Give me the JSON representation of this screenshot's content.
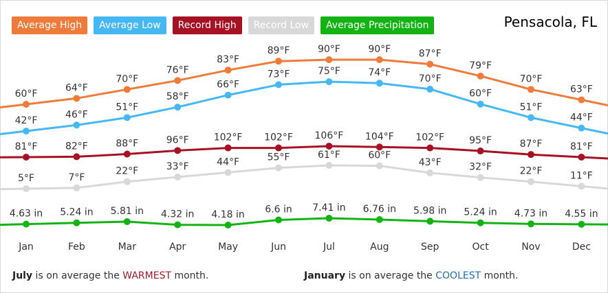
{
  "legend": [
    {
      "label": "Average High",
      "color": "#ef7b3a"
    },
    {
      "label": "Average Low",
      "color": "#45b8f3"
    },
    {
      "label": "Record High",
      "color": "#a61224"
    },
    {
      "label": "Record Low",
      "color": "#d8d8d8"
    },
    {
      "label": "Average Precipitation",
      "color": "#12b312"
    }
  ],
  "location": "Pensacola, FL",
  "chart_data": {
    "type": "line",
    "categories": [
      "Jan",
      "Feb",
      "Mar",
      "Apr",
      "May",
      "Jun",
      "Jul",
      "Aug",
      "Sep",
      "Oct",
      "Nov",
      "Dec"
    ],
    "series": [
      {
        "name": "Average High",
        "color": "#ef7b3a",
        "values": [
          60,
          64,
          70,
          76,
          83,
          89,
          90,
          90,
          87,
          79,
          70,
          63
        ],
        "labels": [
          "60°F",
          "64°F",
          "70°F",
          "76°F",
          "83°F",
          "89°F",
          "90°F",
          "90°F",
          "87°F",
          "79°F",
          "70°F",
          "63°F"
        ]
      },
      {
        "name": "Average Low",
        "color": "#45b8f3",
        "values": [
          42,
          46,
          51,
          58,
          66,
          73,
          75,
          74,
          70,
          60,
          51,
          44
        ],
        "labels": [
          "42°F",
          "46°F",
          "51°F",
          "58°F",
          "66°F",
          "73°F",
          "75°F",
          "74°F",
          "70°F",
          "60°F",
          "51°F",
          "44°F"
        ]
      },
      {
        "name": "Record High",
        "color": "#a61224",
        "values": [
          81,
          82,
          88,
          96,
          102,
          102,
          106,
          104,
          102,
          95,
          87,
          81
        ],
        "labels": [
          "81°F",
          "82°F",
          "88°F",
          "96°F",
          "102°F",
          "102°F",
          "106°F",
          "104°F",
          "102°F",
          "95°F",
          "87°F",
          "81°F"
        ]
      },
      {
        "name": "Record Low",
        "color": "#d8d8d8",
        "values": [
          5,
          7,
          22,
          33,
          44,
          55,
          61,
          60,
          43,
          32,
          22,
          11
        ],
        "labels": [
          "5°F",
          "7°F",
          "22°F",
          "33°F",
          "44°F",
          "55°F",
          "61°F",
          "60°F",
          "43°F",
          "32°F",
          "22°F",
          "11°F"
        ]
      },
      {
        "name": "Average Precipitation",
        "color": "#12b312",
        "values": [
          4.63,
          5.24,
          5.81,
          4.32,
          4.18,
          6.6,
          7.41,
          6.76,
          5.98,
          5.24,
          4.73,
          4.55
        ],
        "labels": [
          "4.63 in",
          "5.24 in",
          "5.81 in",
          "4.32 in",
          "4.18 in",
          "6.6 in",
          "7.41 in",
          "6.76 in",
          "5.98 in",
          "5.24 in",
          "4.73 in",
          "4.55 in"
        ]
      }
    ]
  },
  "footer": {
    "warm_month": "July",
    "warm_text": " is on average the ",
    "warm_word": "WARMEST",
    "warm_end": " month.",
    "cool_month": "January",
    "cool_text": " is on average the ",
    "cool_word": "COOLEST",
    "cool_end": " month."
  }
}
